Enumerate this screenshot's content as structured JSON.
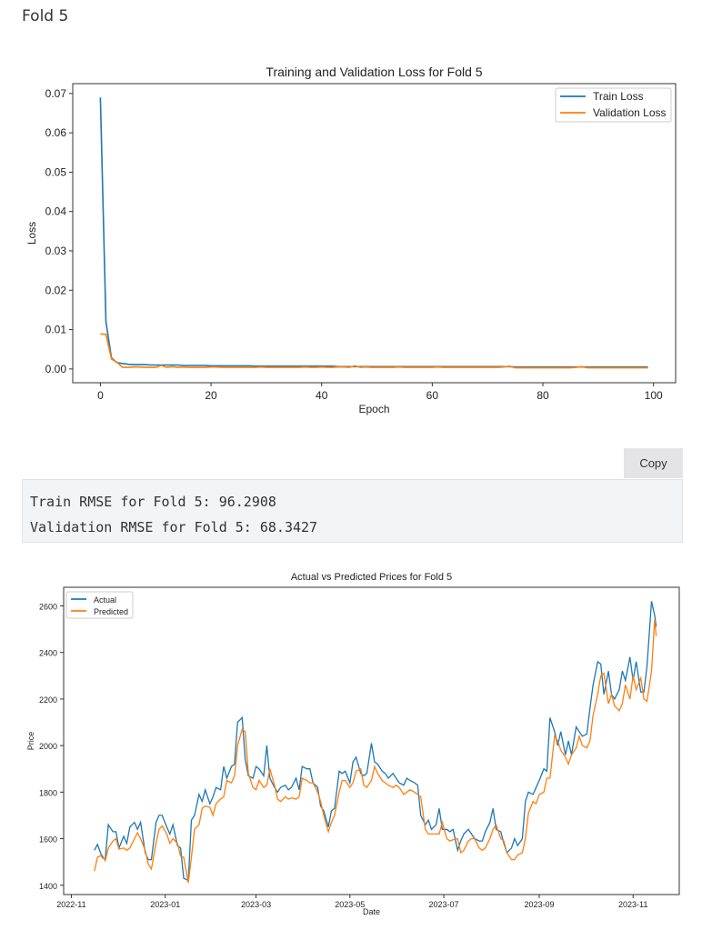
{
  "heading": "Fold 5",
  "copy_label": "Copy",
  "output_lines": [
    "Train RMSE for Fold 5: 96.2908",
    "Validation RMSE for Fold 5: 68.3427"
  ],
  "colors": {
    "train": "#1f77b4",
    "val": "#ff7f0e"
  },
  "chart_data": [
    {
      "type": "line",
      "title": "Training and Validation Loss for Fold 5",
      "xlabel": "Epoch",
      "ylabel": "Loss",
      "xlim": [
        -5,
        104
      ],
      "ylim": [
        -0.0035,
        0.0725
      ],
      "xticks": [
        0,
        20,
        40,
        60,
        80,
        100
      ],
      "yticks": [
        "0.00",
        "0.01",
        "0.02",
        "0.03",
        "0.04",
        "0.05",
        "0.06",
        "0.07"
      ],
      "legend": "top-right",
      "grid": false,
      "series": [
        {
          "name": "Train Loss",
          "values": [
            0.069,
            0.012,
            0.0028,
            0.0016,
            0.0014,
            0.0012,
            0.0011,
            0.0011,
            0.0011,
            0.001,
            0.001,
            0.001,
            0.001,
            0.001,
            0.001,
            0.0009,
            0.0009,
            0.0009,
            0.0009,
            0.0009,
            0.0008,
            0.0008,
            0.0008,
            0.0008,
            0.0008,
            0.0008,
            0.0008,
            0.0008,
            0.0007,
            0.0007,
            0.0007,
            0.0007,
            0.0007,
            0.0007,
            0.0007,
            0.0007,
            0.0007,
            0.0007,
            0.0007,
            0.0007,
            0.0007,
            0.0007,
            0.0007,
            0.0006,
            0.0006,
            0.0006,
            0.0006,
            0.0006,
            0.0006,
            0.0006,
            0.0006,
            0.0006,
            0.0006,
            0.0006,
            0.0006,
            0.0006,
            0.0006,
            0.0006,
            0.0006,
            0.0006,
            0.0006,
            0.0006,
            0.0006,
            0.0006,
            0.0006,
            0.0006,
            0.0006,
            0.0006,
            0.0006,
            0.0006,
            0.0006,
            0.0006,
            0.0006,
            0.0006,
            0.0006,
            0.0005,
            0.0005,
            0.0005,
            0.0005,
            0.0005,
            0.0005,
            0.0005,
            0.0005,
            0.0005,
            0.0005,
            0.0005,
            0.0005,
            0.0005,
            0.0005,
            0.0005,
            0.0005,
            0.0005,
            0.0005,
            0.0005,
            0.0005,
            0.0005,
            0.0005,
            0.0005,
            0.0005,
            0.0005
          ]
        },
        {
          "name": "Validation Loss",
          "values": [
            0.0089,
            0.0088,
            0.0025,
            0.0017,
            0.0004,
            0.0004,
            0.0005,
            0.0005,
            0.0004,
            0.0004,
            0.0004,
            0.0009,
            0.0004,
            0.0006,
            0.0004,
            0.0005,
            0.0004,
            0.0004,
            0.0004,
            0.0004,
            0.0005,
            0.0005,
            0.0004,
            0.0004,
            0.0004,
            0.0004,
            0.0004,
            0.0004,
            0.0004,
            0.0005,
            0.0004,
            0.0004,
            0.0004,
            0.0004,
            0.0004,
            0.0004,
            0.0004,
            0.0005,
            0.0004,
            0.0004,
            0.0005,
            0.0004,
            0.0004,
            0.0005,
            0.0005,
            0.0004,
            0.0008,
            0.0004,
            0.0005,
            0.0004,
            0.0004,
            0.0004,
            0.0004,
            0.0004,
            0.0005,
            0.0004,
            0.0004,
            0.0004,
            0.0004,
            0.0004,
            0.0004,
            0.0005,
            0.0004,
            0.0004,
            0.0004,
            0.0004,
            0.0004,
            0.0004,
            0.0004,
            0.0004,
            0.0004,
            0.0004,
            0.0004,
            0.0005,
            0.0007,
            0.0003,
            0.0003,
            0.0003,
            0.0003,
            0.0003,
            0.0003,
            0.0003,
            0.0003,
            0.0003,
            0.0003,
            0.0003,
            0.0004,
            0.0006,
            0.0003,
            0.0003,
            0.0003,
            0.0003,
            0.0003,
            0.0003,
            0.0003,
            0.0003,
            0.0003,
            0.0003,
            0.0003,
            0.0003
          ]
        }
      ]
    },
    {
      "type": "line",
      "title": "Actual vs Predicted Prices for Fold 5",
      "xlabel": "Date",
      "ylabel": "Price",
      "xlim": [
        "2022-10-27",
        "2023-12-01"
      ],
      "ylim": [
        1360,
        2680
      ],
      "xticks": [
        "2022-11",
        "2023-01",
        "2023-03",
        "2023-05",
        "2023-07",
        "2023-09",
        "2023-11"
      ],
      "yticks": [
        1400,
        1600,
        1800,
        2000,
        2200,
        2400,
        2600
      ],
      "legend": "top-left",
      "grid": false,
      "dates": [
        "2022-11-16",
        "2022-11-18",
        "2022-11-21",
        "2022-11-23",
        "2022-11-25",
        "2022-11-28",
        "2022-11-30",
        "2022-12-02",
        "2022-12-05",
        "2022-12-07",
        "2022-12-09",
        "2022-12-12",
        "2022-12-14",
        "2022-12-16",
        "2022-12-19",
        "2022-12-21",
        "2022-12-23",
        "2022-12-26",
        "2022-12-28",
        "2022-12-30",
        "2023-01-02",
        "2023-01-04",
        "2023-01-06",
        "2023-01-09",
        "2023-01-11",
        "2023-01-13",
        "2023-01-16",
        "2023-01-18",
        "2023-01-20",
        "2023-01-23",
        "2023-01-25",
        "2023-01-27",
        "2023-01-30",
        "2023-02-01",
        "2023-02-03",
        "2023-02-06",
        "2023-02-08",
        "2023-02-10",
        "2023-02-13",
        "2023-02-15",
        "2023-02-17",
        "2023-02-20",
        "2023-02-22",
        "2023-02-24",
        "2023-02-27",
        "2023-03-01",
        "2023-03-03",
        "2023-03-06",
        "2023-03-08",
        "2023-03-10",
        "2023-03-13",
        "2023-03-15",
        "2023-03-17",
        "2023-03-20",
        "2023-03-22",
        "2023-03-24",
        "2023-03-27",
        "2023-03-29",
        "2023-03-31",
        "2023-04-03",
        "2023-04-05",
        "2023-04-07",
        "2023-04-10",
        "2023-04-12",
        "2023-04-14",
        "2023-04-17",
        "2023-04-19",
        "2023-04-21",
        "2023-04-24",
        "2023-04-26",
        "2023-04-28",
        "2023-05-01",
        "2023-05-03",
        "2023-05-05",
        "2023-05-08",
        "2023-05-10",
        "2023-05-12",
        "2023-05-15",
        "2023-05-17",
        "2023-05-19",
        "2023-05-22",
        "2023-05-24",
        "2023-05-26",
        "2023-05-29",
        "2023-05-31",
        "2023-06-02",
        "2023-06-05",
        "2023-06-07",
        "2023-06-09",
        "2023-06-12",
        "2023-06-14",
        "2023-06-16",
        "2023-06-19",
        "2023-06-21",
        "2023-06-23",
        "2023-06-26",
        "2023-06-28",
        "2023-06-30",
        "2023-07-03",
        "2023-07-05",
        "2023-07-07",
        "2023-07-10",
        "2023-07-12",
        "2023-07-14",
        "2023-07-17",
        "2023-07-19",
        "2023-07-21",
        "2023-07-24",
        "2023-07-26",
        "2023-07-28",
        "2023-07-31",
        "2023-08-02",
        "2023-08-04",
        "2023-08-07",
        "2023-08-09",
        "2023-08-11",
        "2023-08-14",
        "2023-08-16",
        "2023-08-18",
        "2023-08-21",
        "2023-08-23",
        "2023-08-25",
        "2023-08-28",
        "2023-08-30",
        "2023-09-01",
        "2023-09-04",
        "2023-09-06",
        "2023-09-08",
        "2023-09-11",
        "2023-09-13",
        "2023-09-15",
        "2023-09-18",
        "2023-09-20",
        "2023-09-22",
        "2023-09-25",
        "2023-09-27",
        "2023-09-29",
        "2023-10-02",
        "2023-10-04",
        "2023-10-06",
        "2023-10-09",
        "2023-10-11",
        "2023-10-13",
        "2023-10-16",
        "2023-10-18",
        "2023-10-20",
        "2023-10-23",
        "2023-10-25",
        "2023-10-27",
        "2023-10-30",
        "2023-11-01",
        "2023-11-03",
        "2023-11-06",
        "2023-11-08",
        "2023-11-10",
        "2023-11-13",
        "2023-11-15",
        "2023-11-16"
      ],
      "series": [
        {
          "name": "Actual",
          "values": [
            1550,
            1575,
            1520,
            1510,
            1660,
            1630,
            1630,
            1560,
            1610,
            1580,
            1650,
            1670,
            1640,
            1670,
            1540,
            1510,
            1510,
            1670,
            1700,
            1700,
            1650,
            1620,
            1660,
            1570,
            1560,
            1430,
            1420,
            1680,
            1700,
            1790,
            1760,
            1810,
            1750,
            1780,
            1820,
            1810,
            1910,
            1860,
            1910,
            1920,
            2100,
            2120,
            1940,
            1870,
            1860,
            1910,
            1900,
            1870,
            2000,
            1860,
            1820,
            1800,
            1820,
            1830,
            1810,
            1820,
            1860,
            1810,
            1910,
            1900,
            1900,
            1840,
            1820,
            1740,
            1720,
            1650,
            1720,
            1730,
            1890,
            1880,
            1890,
            1840,
            1930,
            1950,
            1880,
            1870,
            1880,
            2010,
            1930,
            1920,
            1890,
            1880,
            1860,
            1880,
            1860,
            1840,
            1830,
            1860,
            1850,
            1840,
            1830,
            1700,
            1660,
            1680,
            1640,
            1660,
            1730,
            1640,
            1640,
            1630,
            1640,
            1550,
            1590,
            1620,
            1640,
            1620,
            1600,
            1590,
            1590,
            1630,
            1670,
            1730,
            1640,
            1630,
            1580,
            1540,
            1560,
            1600,
            1570,
            1600,
            1760,
            1800,
            1790,
            1820,
            1850,
            1900,
            1890,
            2120,
            2060,
            2000,
            2060,
            1960,
            2020,
            1960,
            2080,
            2060,
            2040,
            2050,
            2160,
            2260,
            2360,
            2350,
            2220,
            2320,
            2220,
            2200,
            2240,
            2320,
            2280,
            2380,
            2280,
            2360,
            2230,
            2230,
            2340,
            2620,
            2560,
            2510
          ]
        },
        {
          "name": "Predicted",
          "values": [
            1460,
            1520,
            1530,
            1505,
            1560,
            1590,
            1600,
            1555,
            1560,
            1550,
            1560,
            1600,
            1625,
            1600,
            1550,
            1490,
            1470,
            1580,
            1640,
            1655,
            1620,
            1580,
            1600,
            1580,
            1525,
            1520,
            1410,
            1520,
            1640,
            1660,
            1730,
            1740,
            1735,
            1700,
            1750,
            1770,
            1780,
            1850,
            1840,
            1870,
            2000,
            2070,
            2060,
            1880,
            1820,
            1810,
            1850,
            1820,
            1830,
            1900,
            1830,
            1770,
            1760,
            1780,
            1770,
            1775,
            1770,
            1780,
            1860,
            1850,
            1840,
            1840,
            1800,
            1760,
            1700,
            1630,
            1670,
            1700,
            1800,
            1850,
            1850,
            1820,
            1840,
            1890,
            1900,
            1830,
            1820,
            1850,
            1910,
            1880,
            1850,
            1840,
            1830,
            1820,
            1830,
            1820,
            1790,
            1800,
            1810,
            1800,
            1790,
            1780,
            1640,
            1620,
            1620,
            1620,
            1620,
            1670,
            1600,
            1590,
            1595,
            1600,
            1540,
            1550,
            1590,
            1600,
            1600,
            1560,
            1550,
            1560,
            1600,
            1640,
            1660,
            1600,
            1590,
            1540,
            1510,
            1510,
            1530,
            1540,
            1600,
            1710,
            1760,
            1750,
            1790,
            1800,
            1860,
            1860,
            2040,
            2020,
            1980,
            1950,
            1920,
            1960,
            1990,
            2040,
            2000,
            1990,
            2020,
            2130,
            2220,
            2300,
            2310,
            2180,
            2220,
            2170,
            2150,
            2180,
            2260,
            2200,
            2300,
            2240,
            2290,
            2200,
            2190,
            2320,
            2540,
            2470
          ]
        }
      ]
    }
  ]
}
